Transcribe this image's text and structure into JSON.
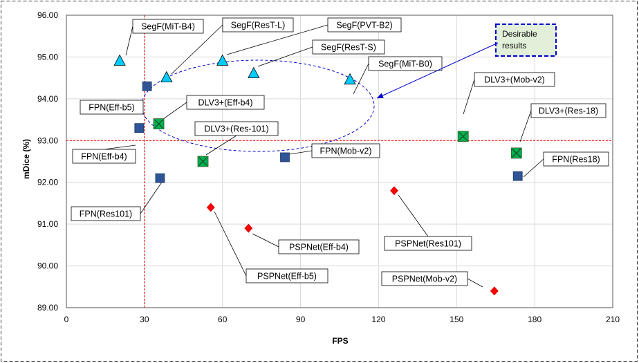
{
  "chart_data": {
    "type": "scatter",
    "title": "",
    "xlabel": "FPS",
    "ylabel": "mDice  (%)",
    "xlim": [
      0,
      210
    ],
    "ylim": [
      89,
      96
    ],
    "xticks": [
      "0",
      "30",
      "60",
      "90",
      "120",
      "150",
      "180",
      "210"
    ],
    "yticks": [
      "89.00",
      "90.00",
      "91.00",
      "92.00",
      "93.00",
      "94.00",
      "95.00",
      "96.00"
    ],
    "grid": true,
    "reference_lines": {
      "x": 30,
      "y": 93.0
    },
    "colors": {
      "segformer": "#00CCFF",
      "fpn": "#2F5597",
      "deeplabv3plus": "#00B050",
      "pspnet": "#FF0000",
      "reference": "#FF0000",
      "ellipse": "#0000CC"
    },
    "series": [
      {
        "name": "SegFormer",
        "marker": "triangle",
        "points": [
          {
            "label": "SegF(MiT-B4)",
            "x": 20.5,
            "y": 94.9
          },
          {
            "label": "SegF(ResT-L)",
            "x": 38.5,
            "y": 94.5
          },
          {
            "label": "SegF(PVT-B2)",
            "x": 60.0,
            "y": 94.9
          },
          {
            "label": "SegF(ResT-S)",
            "x": 72.0,
            "y": 94.6
          },
          {
            "label": "SegF(MiT-B0)",
            "x": 109.0,
            "y": 94.45
          }
        ]
      },
      {
        "name": "FPN",
        "marker": "square",
        "points": [
          {
            "label": "FPN(Eff-b5)",
            "x": 31.0,
            "y": 94.3
          },
          {
            "label": "FPN(Eff-b4)",
            "x": 28.0,
            "y": 93.3
          },
          {
            "label": "FPN(Res101)",
            "x": 36.0,
            "y": 92.1
          },
          {
            "label": "FPN(Mob-v2)",
            "x": 84.0,
            "y": 92.6
          },
          {
            "label": "FPN(Res18)",
            "x": 173.5,
            "y": 92.15
          }
        ]
      },
      {
        "name": "DeepLabV3+",
        "marker": "square-x",
        "points": [
          {
            "label": "DLV3+(Eff-b4)",
            "x": 35.5,
            "y": 93.4
          },
          {
            "label": "DLV3+(Res-101)",
            "x": 52.5,
            "y": 92.5
          },
          {
            "label": "DLV3+(Mob-v2)",
            "x": 152.5,
            "y": 93.1
          },
          {
            "label": "DLV3+(Res-18)",
            "x": 173.0,
            "y": 92.7
          }
        ]
      },
      {
        "name": "PSPNet",
        "marker": "diamond",
        "points": [
          {
            "label": "PSPNet(Eff-b5)",
            "x": 55.5,
            "y": 91.4
          },
          {
            "label": "PSPNet(Eff-b4)",
            "x": 70.0,
            "y": 90.9
          },
          {
            "label": "PSPNet(Res101)",
            "x": 126.0,
            "y": 91.8
          },
          {
            "label": "PSPNet(Mob-v2)",
            "x": 164.5,
            "y": 89.4
          }
        ]
      }
    ],
    "annotation": {
      "text_lines": [
        "Desirable",
        "results"
      ],
      "target": {
        "x": 118,
        "y": 93.95
      }
    }
  }
}
